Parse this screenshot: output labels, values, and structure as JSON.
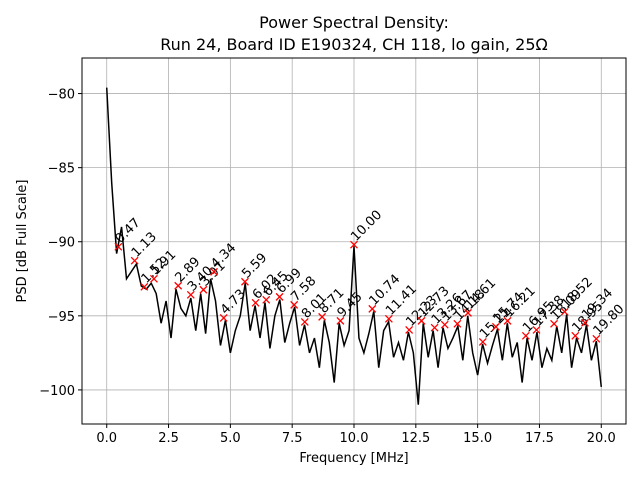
{
  "chart_data": {
    "type": "line",
    "title": "Power Spectral Density:\nRun 24, Board ID E190324, CH 118, lo gain, 25Ω",
    "xlabel": "Frequency [MHz]",
    "ylabel": "PSD [dB Full Scale]",
    "xlim": [
      -1,
      21
    ],
    "ylim": [
      -102.3,
      -77.6
    ],
    "xticks": [
      {
        "value": 0,
        "label": "0.0"
      },
      {
        "value": 2.5,
        "label": "2.5"
      },
      {
        "value": 5,
        "label": "5.0"
      },
      {
        "value": 7.5,
        "label": "7.5"
      },
      {
        "value": 10,
        "label": "10.0"
      },
      {
        "value": 12.5,
        "label": "12.5"
      },
      {
        "value": 15,
        "label": "15.0"
      },
      {
        "value": 17.5,
        "label": "17.5"
      },
      {
        "value": 20,
        "label": "20.0"
      }
    ],
    "yticks": [
      {
        "value": -80,
        "label": "−80"
      },
      {
        "value": -85,
        "label": "−85"
      },
      {
        "value": -90,
        "label": "−90"
      },
      {
        "value": -95,
        "label": "−95"
      },
      {
        "value": -100,
        "label": "−100"
      }
    ],
    "grid": true,
    "x": [
      0,
      0.2,
      0.4,
      0.6,
      0.8,
      1.0,
      1.2,
      1.4,
      1.6,
      1.8,
      2.0,
      2.2,
      2.4,
      2.6,
      2.8,
      3.0,
      3.2,
      3.4,
      3.6,
      3.8,
      4.0,
      4.2,
      4.4,
      4.6,
      4.8,
      5.0,
      5.2,
      5.4,
      5.6,
      5.8,
      6.0,
      6.2,
      6.4,
      6.6,
      6.8,
      7.0,
      7.2,
      7.4,
      7.6,
      7.8,
      8.0,
      8.2,
      8.4,
      8.6,
      8.8,
      9.0,
      9.2,
      9.4,
      9.6,
      9.8,
      10.0,
      10.2,
      10.4,
      10.6,
      10.8,
      11.0,
      11.2,
      11.4,
      11.6,
      11.8,
      12.0,
      12.2,
      12.4,
      12.6,
      12.8,
      13.0,
      13.2,
      13.4,
      13.6,
      13.8,
      14.0,
      14.2,
      14.4,
      14.6,
      14.8,
      15.0,
      15.2,
      15.4,
      15.6,
      15.8,
      16.0,
      16.2,
      16.4,
      16.6,
      16.8,
      17.0,
      17.2,
      17.4,
      17.6,
      17.8,
      18.0,
      18.2,
      18.4,
      18.6,
      18.8,
      19.0,
      19.2,
      19.4,
      19.6,
      19.8,
      20.0
    ],
    "series": [
      {
        "color": "#000000",
        "values": [
          -79.6,
          -86,
          -90.8,
          -89,
          -92.5,
          -92,
          -91.5,
          -93,
          -93.2,
          -92.8,
          -93.5,
          -95.5,
          -94,
          -96.5,
          -93.2,
          -94.5,
          -95,
          -93.8,
          -96,
          -93.5,
          -96.2,
          -92.5,
          -94,
          -97,
          -95.3,
          -97.5,
          -96,
          -95,
          -92.8,
          -96,
          -94.3,
          -96.5,
          -94.1,
          -97.2,
          -95,
          -93.9,
          -96.8,
          -95.5,
          -94.4,
          -97,
          -95.6,
          -97.5,
          -96.5,
          -98.5,
          -95.3,
          -96.8,
          -99.5,
          -95.5,
          -97,
          -96,
          -90.3,
          -96.5,
          -97.5,
          -96.2,
          -94.7,
          -98.5,
          -96,
          -95.4,
          -97.8,
          -96.8,
          -98,
          -96.1,
          -97.5,
          -101,
          -95.5,
          -97.8,
          -96,
          -98.5,
          -95.8,
          -97.2,
          -96.5,
          -95.7,
          -98,
          -95,
          -97.5,
          -99,
          -96.9,
          -98.2,
          -97,
          -95.9,
          -98,
          -95.5,
          -97.8,
          -96.8,
          -99.5,
          -96.5,
          -98,
          -96.1,
          -98.5,
          -97.2,
          -98,
          -95.7,
          -97.5,
          -94.9,
          -98.5,
          -96.5,
          -97.5,
          -95.6,
          -98,
          -96.7,
          -99.8
        ]
      }
    ],
    "peaks": {
      "color": "#ff0000",
      "x": [
        0.47,
        1.13,
        1.52,
        1.91,
        2.89,
        3.4,
        3.91,
        4.34,
        4.73,
        5.59,
        6.02,
        6.45,
        6.99,
        7.58,
        8.01,
        8.71,
        9.45,
        10.0,
        10.74,
        11.41,
        12.23,
        12.73,
        13.26,
        13.67,
        14.18,
        14.61,
        15.21,
        15.74,
        16.21,
        16.95,
        17.38,
        18.09,
        18.52,
        18.95,
        19.34,
        19.8
      ],
      "values": [
        -90.34,
        -91.28,
        -93.04,
        -92.5,
        -92.97,
        -93.58,
        -93.24,
        -92.03,
        -95.14,
        -92.7,
        -94.12,
        -93.92,
        -93.72,
        -94.26,
        -95.41,
        -95.07,
        -95.34,
        -90.2,
        -94.53,
        -95.2,
        -95.95,
        -95.34,
        -95.8,
        -95.6,
        -95.54,
        -94.8,
        -96.76,
        -95.74,
        -95.34,
        -96.35,
        -95.95,
        -95.54,
        -94.73,
        -96.35,
        -95.47,
        -96.55
      ],
      "labels": [
        "0.47",
        "1.13",
        "1.52",
        "1.91",
        "2.89",
        "3.40",
        "3.91",
        "4.34",
        "4.73",
        "5.59",
        "6.02",
        "6.45",
        "6.99",
        "7.58",
        "8.01",
        "8.71",
        "9.45",
        "10.00",
        "10.74",
        "11.41",
        "12.23",
        "12.73",
        "13.26",
        "13.67",
        "14.18",
        "14.61",
        "15.21",
        "15.74",
        "16.21",
        "16.95",
        "17.38",
        "18.09",
        "18.52",
        "18.95",
        "19.34",
        "19.80"
      ]
    }
  }
}
